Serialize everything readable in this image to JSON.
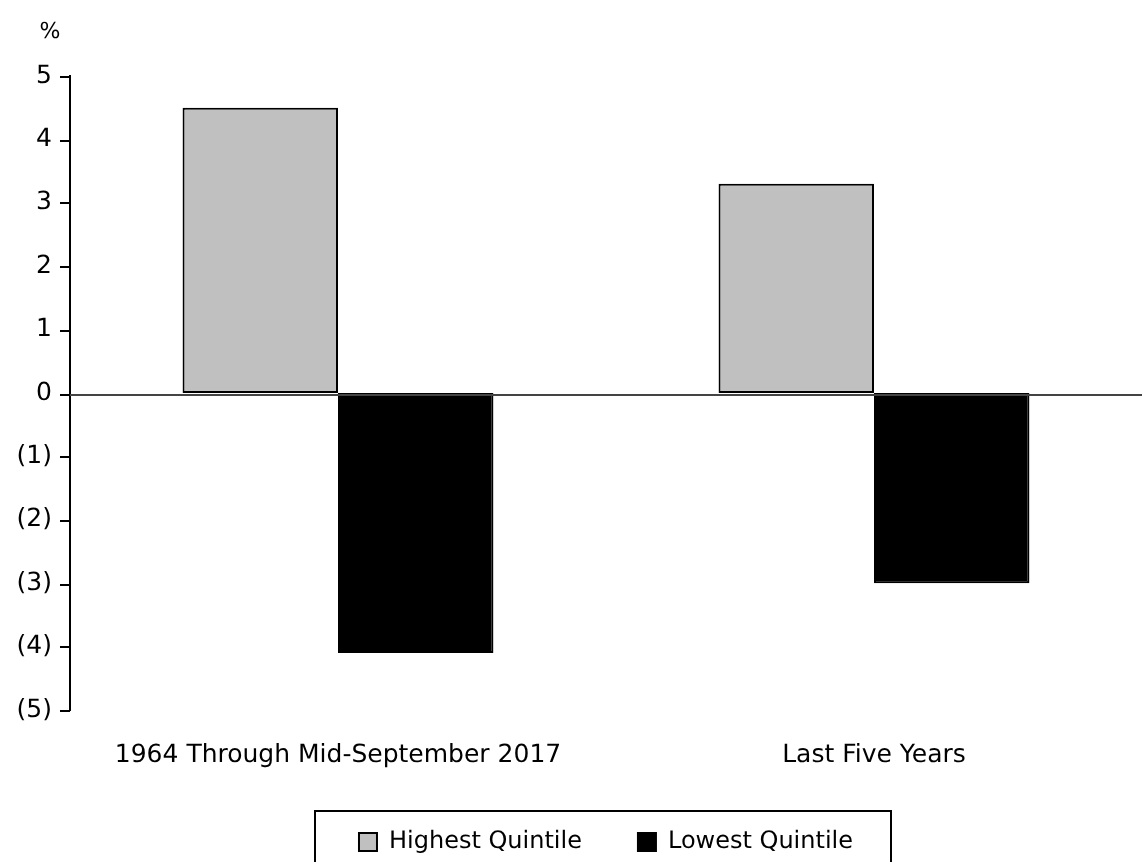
{
  "chart_data": {
    "type": "bar",
    "ylabel": "%",
    "categories": [
      "1964 Through Mid-September 2017",
      "Last Five Years"
    ],
    "series": [
      {
        "name": "Highest Quintile",
        "color": "#c0c0c0",
        "values": [
          4.5,
          3.3
        ]
      },
      {
        "name": "Lowest Quintile",
        "color": "#000000",
        "values": [
          -4.1,
          -3.0
        ]
      }
    ],
    "ylim": [
      -5,
      5
    ],
    "yticks": [
      {
        "value": -5,
        "label": "(5)"
      },
      {
        "value": -4,
        "label": "(4)"
      },
      {
        "value": -3,
        "label": "(3)"
      },
      {
        "value": -2,
        "label": "(2)"
      },
      {
        "value": -1,
        "label": "(1)"
      },
      0,
      1,
      2,
      3,
      4,
      5
    ],
    "ref_lines": [
      {
        "axis": "y",
        "value": 0
      }
    ],
    "grid": false,
    "legend": "bottom"
  }
}
